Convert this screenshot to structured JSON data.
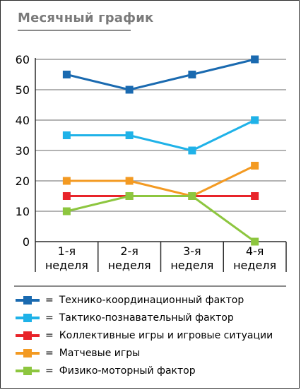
{
  "chart_data": {
    "type": "line",
    "title": "Месячный график",
    "categories": [
      "1-я\nнеделя",
      "2-я\nнеделя",
      "3-я\nнеделя",
      "4-я\nнеделя"
    ],
    "ylim": [
      0,
      60
    ],
    "yticks": [
      0,
      10,
      20,
      30,
      40,
      50,
      60
    ],
    "grid": true,
    "legend_position": "bottom",
    "series": [
      {
        "name": "Технико-координационный фактор",
        "color": "#1a6ab0",
        "values": [
          55,
          50,
          55,
          60
        ]
      },
      {
        "name": "Тактико-познавательный фактор",
        "color": "#1fb2e8",
        "values": [
          35,
          35,
          30,
          40
        ]
      },
      {
        "name": "Коллективные игры и игровые ситуации",
        "color": "#e8242a",
        "values": [
          15,
          15,
          15,
          15
        ]
      },
      {
        "name": "Матчевые игры",
        "color": "#f39a22",
        "values": [
          20,
          20,
          15,
          25
        ]
      },
      {
        "name": "Физико-моторный фактор",
        "color": "#8dc63f",
        "values": [
          10,
          15,
          15,
          0
        ]
      }
    ]
  },
  "legend": {
    "equals": "="
  }
}
